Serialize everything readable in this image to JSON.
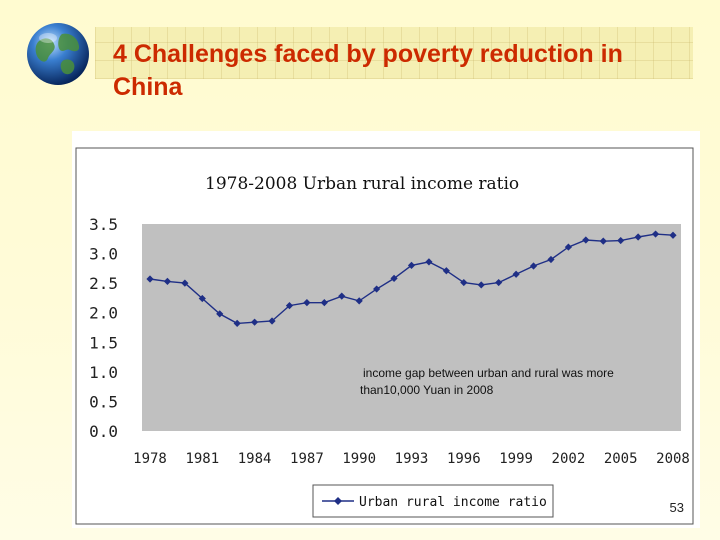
{
  "slide": {
    "title": "4 Challenges faced by poverty reduction in China",
    "page_number": "53"
  },
  "colors": {
    "title": "#cc2a00",
    "plot_background": "#c0c0c0",
    "series_line": "#1f2f86"
  },
  "chart_data": {
    "type": "line",
    "title": "1978-2008 Urban rural income ratio",
    "xlabel": "",
    "ylabel": "",
    "x": [
      1978,
      1979,
      1980,
      1981,
      1982,
      1983,
      1984,
      1985,
      1986,
      1987,
      1988,
      1989,
      1990,
      1991,
      1992,
      1993,
      1994,
      1995,
      1996,
      1997,
      1998,
      1999,
      2000,
      2001,
      2002,
      2003,
      2004,
      2005,
      2006,
      2007,
      2008
    ],
    "series": [
      {
        "name": "Urban rural income ratio",
        "values": [
          2.57,
          2.53,
          2.5,
          2.24,
          1.98,
          1.82,
          1.84,
          1.86,
          2.12,
          2.17,
          2.17,
          2.28,
          2.2,
          2.4,
          2.58,
          2.8,
          2.86,
          2.71,
          2.51,
          2.47,
          2.51,
          2.65,
          2.79,
          2.9,
          3.11,
          3.23,
          3.21,
          3.22,
          3.28,
          3.33,
          3.31
        ]
      }
    ],
    "x_tick_labels": [
      "1978",
      "1981",
      "1984",
      "1987",
      "1990",
      "1993",
      "1996",
      "1999",
      "2002",
      "2005",
      "2008"
    ],
    "y_tick_labels": [
      "3.5",
      "3.0",
      "2.5",
      "2.0",
      "1.5",
      "1.0",
      "0.5",
      "0.0"
    ],
    "ylim": [
      0,
      3.5
    ],
    "xlim": [
      1978,
      2008
    ],
    "grid": false,
    "legend_placement": "bottom",
    "annotation": "income gap between urban and rural was more than10,000 Yuan in 2008"
  }
}
